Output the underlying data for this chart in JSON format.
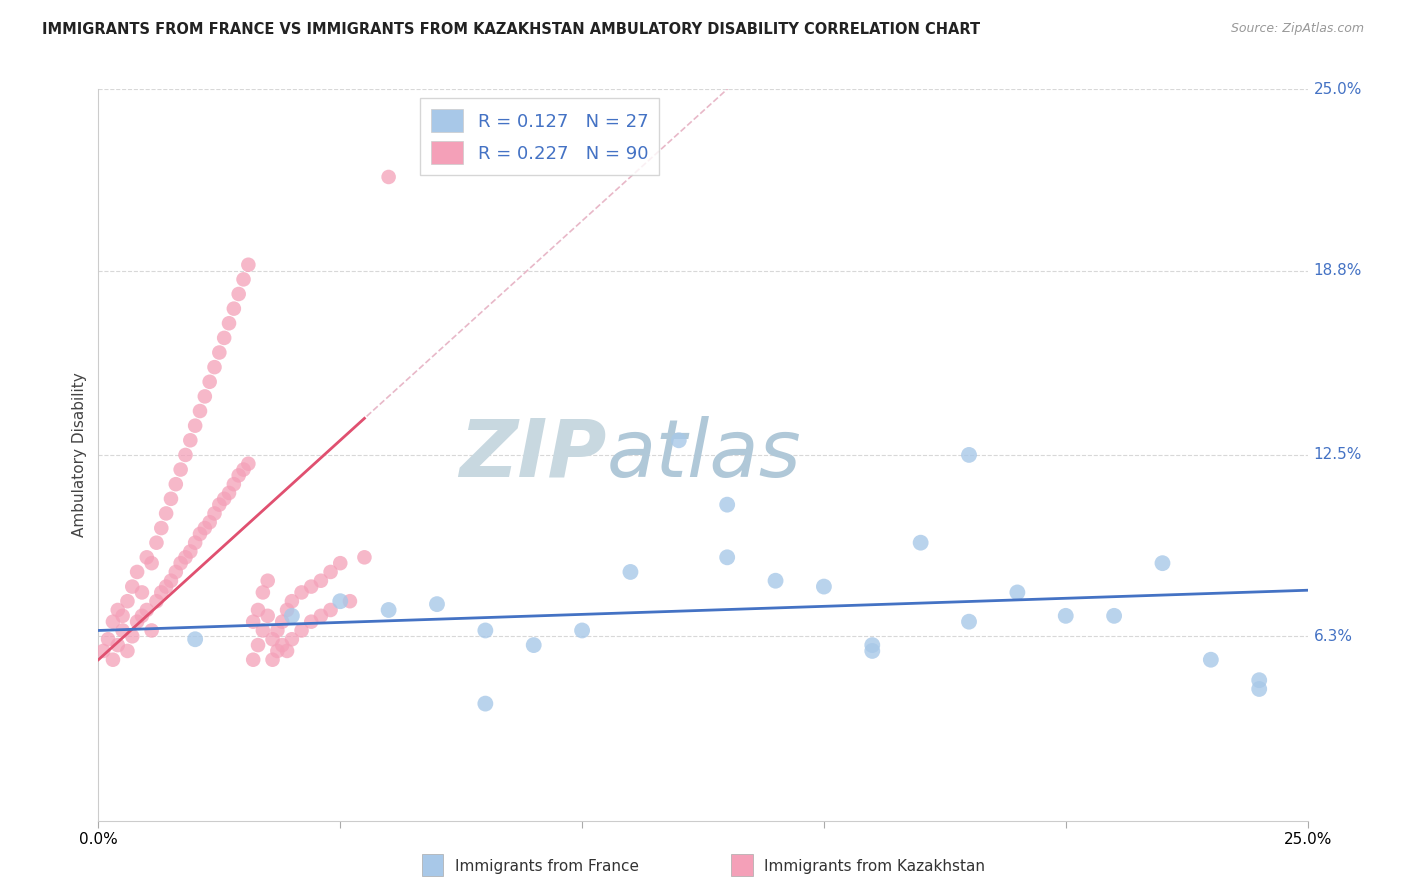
{
  "title": "IMMIGRANTS FROM FRANCE VS IMMIGRANTS FROM KAZAKHSTAN AMBULATORY DISABILITY CORRELATION CHART",
  "source": "Source: ZipAtlas.com",
  "xlabel_france": "Immigrants from France",
  "xlabel_kazakhstan": "Immigrants from Kazakhstan",
  "ylabel": "Ambulatory Disability",
  "xlim": [
    0.0,
    0.25
  ],
  "ylim": [
    0.0,
    0.25
  ],
  "ytick_labels_right": [
    "6.3%",
    "12.5%",
    "18.8%",
    "25.0%"
  ],
  "ytick_vals_right": [
    0.063,
    0.125,
    0.188,
    0.25
  ],
  "r_france": 0.127,
  "n_france": 27,
  "r_kazakhstan": 0.227,
  "n_kazakhstan": 90,
  "color_france": "#a8c8e8",
  "color_kazakhstan": "#f4a0b8",
  "trendline_france_color": "#4472c4",
  "trendline_kazakhstan_color": "#e05070",
  "diag_line_color": "#e8b8c8",
  "watermark_zip": "ZIP",
  "watermark_atlas": "atlas",
  "watermark_color_zip": "#c8d8e0",
  "watermark_color_atlas": "#b0c8d8",
  "background_color": "#ffffff",
  "grid_color": "#d8d8d8",
  "france_x": [
    0.05,
    0.18,
    0.22,
    0.13,
    0.15,
    0.2,
    0.08,
    0.24,
    0.11,
    0.17,
    0.19,
    0.07,
    0.14,
    0.09,
    0.21,
    0.12,
    0.1,
    0.16,
    0.06,
    0.23,
    0.04,
    0.18,
    0.08,
    0.16,
    0.02,
    0.13,
    0.24
  ],
  "france_y": [
    0.075,
    0.125,
    0.088,
    0.09,
    0.08,
    0.07,
    0.065,
    0.048,
    0.085,
    0.095,
    0.078,
    0.074,
    0.082,
    0.06,
    0.07,
    0.13,
    0.065,
    0.06,
    0.072,
    0.055,
    0.07,
    0.068,
    0.04,
    0.058,
    0.062,
    0.108,
    0.045
  ],
  "kazakhstan_x": [
    0.001,
    0.002,
    0.003,
    0.003,
    0.004,
    0.004,
    0.005,
    0.005,
    0.006,
    0.006,
    0.007,
    0.007,
    0.008,
    0.008,
    0.009,
    0.009,
    0.01,
    0.01,
    0.011,
    0.011,
    0.012,
    0.012,
    0.013,
    0.013,
    0.014,
    0.014,
    0.015,
    0.015,
    0.016,
    0.016,
    0.017,
    0.017,
    0.018,
    0.018,
    0.019,
    0.019,
    0.02,
    0.02,
    0.021,
    0.021,
    0.022,
    0.022,
    0.023,
    0.023,
    0.024,
    0.024,
    0.025,
    0.025,
    0.026,
    0.026,
    0.027,
    0.027,
    0.028,
    0.028,
    0.029,
    0.029,
    0.03,
    0.03,
    0.031,
    0.031,
    0.032,
    0.032,
    0.033,
    0.033,
    0.034,
    0.034,
    0.035,
    0.035,
    0.036,
    0.036,
    0.037,
    0.037,
    0.038,
    0.038,
    0.039,
    0.039,
    0.04,
    0.04,
    0.042,
    0.042,
    0.044,
    0.044,
    0.046,
    0.046,
    0.048,
    0.048,
    0.05,
    0.052,
    0.055,
    0.06
  ],
  "kazakhstan_y": [
    0.058,
    0.062,
    0.055,
    0.068,
    0.06,
    0.072,
    0.065,
    0.07,
    0.058,
    0.075,
    0.063,
    0.08,
    0.068,
    0.085,
    0.07,
    0.078,
    0.072,
    0.09,
    0.065,
    0.088,
    0.075,
    0.095,
    0.078,
    0.1,
    0.08,
    0.105,
    0.082,
    0.11,
    0.085,
    0.115,
    0.088,
    0.12,
    0.09,
    0.125,
    0.092,
    0.13,
    0.095,
    0.135,
    0.098,
    0.14,
    0.1,
    0.145,
    0.102,
    0.15,
    0.105,
    0.155,
    0.108,
    0.16,
    0.11,
    0.165,
    0.112,
    0.17,
    0.115,
    0.175,
    0.118,
    0.18,
    0.12,
    0.185,
    0.122,
    0.19,
    0.055,
    0.068,
    0.06,
    0.072,
    0.065,
    0.078,
    0.07,
    0.082,
    0.055,
    0.062,
    0.058,
    0.065,
    0.06,
    0.068,
    0.072,
    0.058,
    0.075,
    0.062,
    0.078,
    0.065,
    0.08,
    0.068,
    0.082,
    0.07,
    0.085,
    0.072,
    0.088,
    0.075,
    0.09,
    0.22
  ]
}
